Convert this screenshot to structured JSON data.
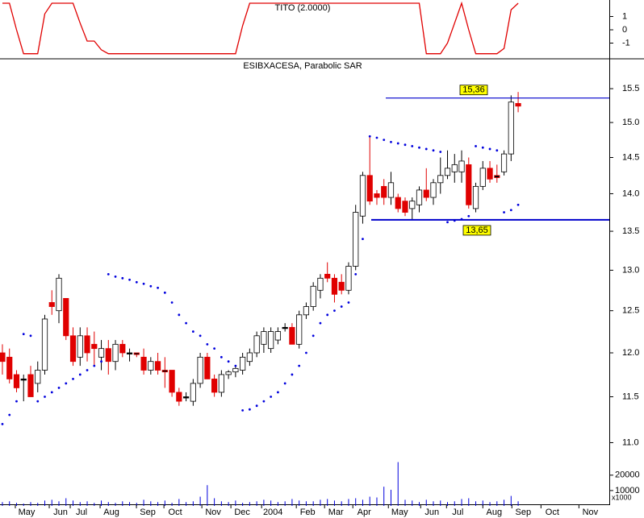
{
  "chart_data": [
    {
      "type": "line",
      "title": "TITO (2.0000)",
      "color": "#e00000",
      "values": [
        2,
        2,
        0,
        -1.8,
        -1.8,
        -1.8,
        1.2,
        2,
        2,
        2,
        2,
        0.5,
        -0.85,
        -0.85,
        -1.5,
        -1.8,
        -1.8,
        -1.8,
        -1.8,
        -1.8,
        -1.8,
        -1.8,
        -1.8,
        -1.8,
        -1.8,
        -1.8,
        -1.8,
        -1.8,
        -1.8,
        -1.8,
        -1.8,
        -1.8,
        -1.8,
        -1.8,
        0.3,
        2,
        2,
        2,
        2,
        2,
        2,
        2,
        2,
        2,
        2,
        2,
        2,
        2,
        2,
        2,
        2,
        2,
        2,
        2,
        2,
        2,
        2,
        2,
        2,
        2,
        -1.8,
        -1.8,
        -1.8,
        -1,
        0.5,
        2,
        0,
        -1.8,
        -1.8,
        -1.8,
        -1.8,
        -1.4,
        1.5,
        2
      ],
      "ylim": [
        -2.12,
        2.24
      ],
      "yticks": [
        1,
        0,
        -1
      ]
    },
    {
      "type": "candlestick",
      "title": "ESIBXACESA, Parabolic SAR",
      "log_scale": true,
      "up_color": "#ffffff",
      "down_color": "#e00000",
      "flat_color": "#000000",
      "sar_color": "#0000dd",
      "open": [
        12.0,
        11.95,
        11.75,
        11.7,
        11.75,
        11.65,
        11.8,
        12.6,
        12.5,
        12.65,
        12.2,
        11.95,
        12.2,
        12.1,
        11.95,
        12.05,
        11.9,
        12.1,
        12.0,
        12.0,
        11.95,
        11.8,
        11.9,
        11.8,
        11.8,
        11.55,
        11.5,
        11.45,
        11.65,
        11.95,
        11.7,
        11.55,
        11.75,
        11.78,
        11.8,
        11.9,
        12.0,
        12.1,
        12.05,
        12.15,
        12.3,
        12.3,
        12.1,
        12.45,
        12.55,
        12.75,
        12.95,
        12.9,
        12.85,
        12.75,
        13.05,
        13.7,
        14.25,
        14.0,
        14.1,
        13.95,
        13.95,
        13.9,
        13.8,
        13.85,
        14.05,
        13.95,
        14.15,
        14.25,
        14.3,
        14.3,
        14.4,
        13.8,
        14.1,
        14.35,
        14.25,
        14.3,
        14.55,
        15.28
      ],
      "high": [
        12.1,
        12.05,
        11.8,
        11.75,
        11.85,
        11.9,
        12.45,
        12.75,
        12.95,
        12.65,
        12.3,
        12.3,
        12.3,
        12.25,
        12.15,
        12.15,
        12.15,
        12.15,
        12.05,
        12.0,
        12.05,
        11.95,
        12.0,
        11.95,
        11.8,
        11.6,
        11.55,
        11.7,
        12.0,
        12.0,
        11.75,
        11.8,
        11.8,
        11.85,
        12.0,
        12.05,
        12.25,
        12.3,
        12.3,
        12.3,
        12.35,
        12.35,
        12.5,
        12.6,
        12.85,
        12.95,
        13.1,
        12.95,
        12.95,
        13.1,
        13.85,
        14.3,
        14.8,
        14.05,
        14.2,
        14.3,
        14.0,
        13.95,
        13.95,
        14.1,
        14.35,
        14.2,
        14.5,
        14.6,
        14.55,
        14.6,
        14.5,
        14.15,
        14.45,
        14.45,
        14.4,
        14.6,
        15.4,
        15.45
      ],
      "low": [
        11.75,
        11.65,
        11.55,
        11.45,
        11.5,
        11.55,
        11.75,
        12.45,
        12.35,
        12.15,
        11.85,
        11.85,
        11.9,
        11.85,
        11.8,
        11.75,
        11.8,
        11.95,
        11.9,
        11.95,
        11.75,
        11.75,
        11.75,
        11.6,
        11.5,
        11.4,
        11.45,
        11.4,
        11.6,
        11.7,
        11.5,
        11.5,
        11.7,
        11.72,
        11.75,
        11.85,
        11.95,
        12.0,
        12.0,
        12.1,
        12.25,
        12.1,
        12.05,
        12.4,
        12.5,
        12.65,
        12.85,
        12.6,
        12.7,
        12.7,
        13.0,
        13.6,
        13.85,
        13.85,
        13.85,
        13.85,
        13.75,
        13.7,
        13.65,
        13.75,
        13.9,
        13.85,
        14.0,
        14.2,
        14.15,
        14.15,
        13.8,
        13.75,
        14.05,
        14.15,
        14.15,
        14.25,
        14.45,
        15.15
      ],
      "close": [
        11.9,
        11.7,
        11.6,
        11.7,
        11.5,
        11.8,
        12.4,
        12.55,
        12.9,
        12.2,
        11.9,
        12.2,
        12.0,
        12.05,
        12.05,
        11.9,
        12.1,
        12.0,
        12.0,
        11.98,
        11.8,
        11.9,
        11.8,
        11.78,
        11.55,
        11.45,
        11.5,
        11.65,
        11.95,
        11.7,
        11.55,
        11.75,
        11.78,
        11.82,
        11.95,
        12.0,
        12.2,
        12.25,
        12.25,
        12.25,
        12.3,
        12.1,
        12.45,
        12.55,
        12.8,
        12.9,
        12.9,
        12.7,
        12.75,
        13.05,
        13.75,
        14.25,
        13.9,
        13.95,
        13.95,
        14.15,
        13.8,
        13.75,
        13.9,
        14.05,
        13.95,
        14.15,
        14.25,
        14.35,
        14.4,
        14.45,
        13.85,
        14.1,
        14.35,
        14.2,
        14.22,
        14.55,
        15.3,
        15.24
      ],
      "sar": [
        11.2,
        11.3,
        11.45,
        12.22,
        12.2,
        11.45,
        11.5,
        11.55,
        11.6,
        11.65,
        11.7,
        11.75,
        11.8,
        11.85,
        11.9,
        12.95,
        12.92,
        12.9,
        12.88,
        12.85,
        12.83,
        12.8,
        12.78,
        12.72,
        12.6,
        12.45,
        12.35,
        12.25,
        12.2,
        12.1,
        12.05,
        11.95,
        11.9,
        11.85,
        11.35,
        11.36,
        11.4,
        11.45,
        11.5,
        11.55,
        11.65,
        11.75,
        11.85,
        12.0,
        12.2,
        12.35,
        12.45,
        12.5,
        12.55,
        12.6,
        12.95,
        13.4,
        14.8,
        14.78,
        14.75,
        14.72,
        14.7,
        14.68,
        14.66,
        14.64,
        14.62,
        14.6,
        14.58,
        13.62,
        13.64,
        13.66,
        13.7,
        14.66,
        14.64,
        14.62,
        14.6,
        13.75,
        13.78,
        13.85
      ],
      "lines": [
        {
          "value": 15.36,
          "label": "15,36",
          "color": "#0000cc"
        },
        {
          "value": 13.65,
          "label": "13,65",
          "color": "#0000cc"
        }
      ],
      "ylim": [
        10.91,
        15.93
      ],
      "yticks": [
        15.5,
        {
          "value": 15,
          "label": "15.0"
        },
        14.5,
        {
          "value": 14,
          "label": "14.0"
        },
        13.5,
        {
          "value": 13,
          "label": "13.0"
        },
        12.5,
        {
          "value": 12,
          "label": "12.0"
        },
        11.5,
        {
          "value": 11,
          "label": "11.0"
        }
      ]
    },
    {
      "type": "bar",
      "color": "#0000dd",
      "unit_label": "x1000",
      "values": [
        2500,
        3000,
        2000,
        1500,
        2500,
        2000,
        3500,
        4000,
        3000,
        5000,
        3500,
        2500,
        3000,
        2000,
        3500,
        2500,
        2000,
        3000,
        2500,
        2000,
        4000,
        3000,
        2500,
        3500,
        2000,
        4500,
        2500,
        3000,
        6000,
        13500,
        5000,
        3000,
        2500,
        3500,
        2000,
        2500,
        3000,
        4000,
        3500,
        2500,
        3000,
        4500,
        3500,
        3000,
        3000,
        4000,
        4500,
        3500,
        3000,
        4500,
        5000,
        4000,
        6000,
        5500,
        12500,
        10500,
        28500,
        4000,
        3500,
        2500,
        4000,
        3000,
        3500,
        2500,
        3000,
        4500,
        5000,
        3000,
        3500,
        2500,
        3000,
        4000,
        6500,
        3000
      ],
      "ylim": [
        0,
        33000
      ],
      "yticks": [
        20000,
        10000
      ],
      "xlim": [
        -0.34,
        85.9
      ],
      "xticks": [
        {
          "value": 3.43,
          "label": "May"
        },
        {
          "value": 8.23,
          "label": "Jun"
        },
        {
          "value": 11.2,
          "label": "Jul"
        },
        {
          "value": 15.43,
          "label": "Aug"
        },
        {
          "value": 20.57,
          "label": "Sep"
        },
        {
          "value": 24.46,
          "label": "Oct"
        },
        {
          "value": 29.83,
          "label": "Nov"
        },
        {
          "value": 33.94,
          "label": "Dec"
        },
        {
          "value": 38.29,
          "label": "2004"
        },
        {
          "value": 43.2,
          "label": "Feb"
        },
        {
          "value": 47.2,
          "label": "Mar"
        },
        {
          "value": 51.2,
          "label": "Apr"
        },
        {
          "value": 56.23,
          "label": "May"
        },
        {
          "value": 60.8,
          "label": "Jun"
        },
        {
          "value": 64.46,
          "label": "Jul"
        },
        {
          "value": 69.6,
          "label": "Aug"
        },
        {
          "value": 73.71,
          "label": "Sep"
        },
        {
          "value": 77.83,
          "label": "Oct"
        },
        {
          "value": 83.2,
          "label": "Nov"
        }
      ]
    }
  ]
}
